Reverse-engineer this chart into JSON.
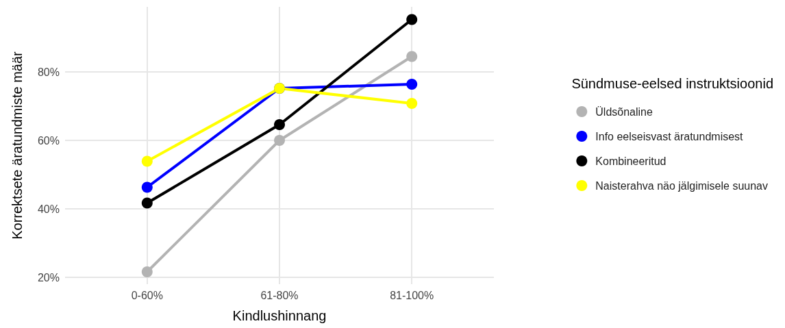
{
  "chart_data": {
    "type": "line",
    "xlabel": "Kindlushinnang",
    "ylabel": "Korrektsete äratundmiste määr",
    "legend_title": "Sündmuse-eelsed instruktsioonid",
    "categories": [
      "0-60%",
      "61-80%",
      "81-100%"
    ],
    "series": [
      {
        "name": "Üldsõnaline",
        "color": "#b3b3b3",
        "values": [
          21.6,
          60,
          84.5
        ]
      },
      {
        "name": "Info eelseisvast äratundmisest",
        "color": "#0000ff",
        "values": [
          46.3,
          75.2,
          76.4
        ]
      },
      {
        "name": "Kombineeritud",
        "color": "#000000",
        "values": [
          41.7,
          64.6,
          95.3
        ]
      },
      {
        "name": "Naisterahva näo jälgimisele suunav",
        "color": "#ffff00",
        "values": [
          53.9,
          75.2,
          70.8
        ]
      }
    ],
    "ylim": [
      18,
      99
    ],
    "yticks": [
      {
        "value": 20,
        "label": "20%"
      },
      {
        "value": 40,
        "label": "40%"
      },
      {
        "value": 60,
        "label": "60%"
      },
      {
        "value": 80,
        "label": "80%"
      }
    ],
    "grid": true,
    "legend": "right",
    "marker": "circle",
    "line_style": "solid"
  }
}
